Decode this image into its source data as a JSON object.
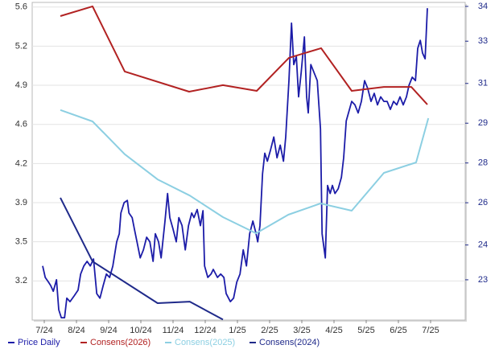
{
  "chart_data": {
    "type": "line",
    "xlim": [
      -0.375,
      13.075
    ],
    "xticks": [
      {
        "value": 0,
        "label": "7/24"
      },
      {
        "value": 1,
        "label": "8/24"
      },
      {
        "value": 2,
        "label": "9/24"
      },
      {
        "value": 3,
        "label": "10/24"
      },
      {
        "value": 4,
        "label": "11/24"
      },
      {
        "value": 5,
        "label": "12/24"
      },
      {
        "value": 6,
        "label": "1/25"
      },
      {
        "value": 7,
        "label": "2/25"
      },
      {
        "value": 8,
        "label": "3/25"
      },
      {
        "value": 9,
        "label": "4/25"
      },
      {
        "value": 10,
        "label": "5/25"
      },
      {
        "value": 11,
        "label": "6/25"
      },
      {
        "value": 12,
        "label": "7/25"
      }
    ],
    "ylim": [
      2.86,
      5.62
    ],
    "yticks": [
      3.2,
      {
        "value": 3.54,
        "label": "3.5"
      },
      {
        "value": 3.88,
        "label": "3.9"
      },
      {
        "value": 4.22,
        "label": "4.2"
      },
      {
        "value": 4.56,
        "label": "4.6"
      },
      4.9,
      {
        "value": 5.24,
        "label": "5.2"
      },
      {
        "value": 5.58,
        "label": "5.6"
      }
    ],
    "y2lim": [
      21.38,
      34.16
    ],
    "y2ticks": [
      23,
      {
        "value": 24.4,
        "label": "24"
      },
      {
        "value": 26.1,
        "label": "26"
      },
      {
        "value": 27.7,
        "label": "28"
      },
      {
        "value": 29.3,
        "label": "29"
      },
      {
        "value": 30.9,
        "label": "31"
      },
      {
        "value": 32.6,
        "label": "33"
      },
      34
    ],
    "grid": true,
    "legend": "bottom",
    "series": [
      {
        "name": "Price Daily",
        "color": "#1c1ca8",
        "x": [
          -0.05,
          0.03,
          0.13,
          0.2,
          0.28,
          0.38,
          0.45,
          0.53,
          0.63,
          0.7,
          0.8,
          0.93,
          1.05,
          1.13,
          1.23,
          1.33,
          1.43,
          1.53,
          1.63,
          1.73,
          1.83,
          1.93,
          2.03,
          2.13,
          2.25,
          2.33,
          2.38,
          2.48,
          2.58,
          2.63,
          2.73,
          2.8,
          2.88,
          2.98,
          3.08,
          3.18,
          3.28,
          3.38,
          3.45,
          3.55,
          3.63,
          3.75,
          3.83,
          3.9,
          4.0,
          4.1,
          4.18,
          4.28,
          4.38,
          4.48,
          4.58,
          4.65,
          4.75,
          4.85,
          4.93,
          4.98,
          5.08,
          5.18,
          5.25,
          5.38,
          5.48,
          5.58,
          5.65,
          5.78,
          5.88,
          5.98,
          6.08,
          6.18,
          6.28,
          6.38,
          6.48,
          6.58,
          6.63,
          6.7,
          6.78,
          6.85,
          6.93,
          7.03,
          7.13,
          7.23,
          7.33,
          7.43,
          7.5,
          7.6,
          7.68,
          7.75,
          7.83,
          7.9,
          7.98,
          8.08,
          8.15,
          8.2,
          8.28,
          8.38,
          8.48,
          8.58,
          8.63,
          8.73,
          8.8,
          8.88,
          8.95,
          9.03,
          9.13,
          9.23,
          9.3,
          9.38,
          9.45,
          9.55,
          9.65,
          9.75,
          9.85,
          9.95,
          10.05,
          10.15,
          10.25,
          10.35,
          10.45,
          10.55,
          10.65,
          10.75,
          10.85,
          10.95,
          11.05,
          11.15,
          11.25,
          11.33,
          11.43,
          11.53,
          11.6,
          11.68,
          11.75,
          11.83,
          11.9
        ],
        "values": [
          3.33,
          3.23,
          3.19,
          3.16,
          3.11,
          3.21,
          2.95,
          2.88,
          2.88,
          3.05,
          3.02,
          3.07,
          3.12,
          3.26,
          3.33,
          3.37,
          3.33,
          3.39,
          3.09,
          3.05,
          3.16,
          3.26,
          3.23,
          3.33,
          3.54,
          3.61,
          3.79,
          3.88,
          3.9,
          3.79,
          3.75,
          3.65,
          3.54,
          3.4,
          3.47,
          3.58,
          3.54,
          3.37,
          3.61,
          3.54,
          3.4,
          3.72,
          3.96,
          3.75,
          3.65,
          3.54,
          3.75,
          3.68,
          3.47,
          3.68,
          3.79,
          3.75,
          3.82,
          3.68,
          3.81,
          3.33,
          3.23,
          3.26,
          3.3,
          3.23,
          3.26,
          3.23,
          3.09,
          3.02,
          3.05,
          3.19,
          3.26,
          3.47,
          3.33,
          3.61,
          3.72,
          3.61,
          3.54,
          3.68,
          4.13,
          4.31,
          4.24,
          4.34,
          4.45,
          4.27,
          4.38,
          4.24,
          4.45,
          4.94,
          5.44,
          5.08,
          5.15,
          4.8,
          5.01,
          5.32,
          4.8,
          4.66,
          5.08,
          5.01,
          4.94,
          4.52,
          3.61,
          3.4,
          4.03,
          3.96,
          4.03,
          3.96,
          4.0,
          4.1,
          4.27,
          4.59,
          4.66,
          4.76,
          4.73,
          4.66,
          4.76,
          4.94,
          4.87,
          4.76,
          4.83,
          4.73,
          4.8,
          4.76,
          4.76,
          4.69,
          4.76,
          4.73,
          4.8,
          4.73,
          4.8,
          4.9,
          4.97,
          4.94,
          5.22,
          5.29,
          5.18,
          5.13,
          5.57
        ]
      },
      {
        "name": "Consens(2026)",
        "color": "#b22222",
        "axis": "y2",
        "x": [
          0.5,
          1.5,
          2.5,
          4.5,
          5.55,
          6.6,
          7.6,
          8.6,
          9.55,
          10.55,
          11.4,
          11.9
        ],
        "values": [
          33.61,
          34.0,
          31.38,
          30.57,
          30.83,
          30.6,
          31.93,
          32.32,
          30.6,
          30.76,
          30.76,
          30.05
        ]
      },
      {
        "name": "Consens(2025)",
        "color": "#8ccfe2",
        "axis": "y2",
        "x": [
          0.5,
          1.5,
          2.5,
          3.52,
          4.52,
          5.55,
          6.58,
          7.58,
          8.58,
          9.55,
          10.55,
          11.55,
          11.93
        ],
        "values": [
          29.83,
          29.37,
          28.05,
          27.04,
          26.39,
          25.52,
          24.87,
          25.62,
          26.07,
          25.78,
          27.3,
          27.72,
          29.5
        ]
      },
      {
        "name": "Consens(2024)",
        "color": "#1f2a8a",
        "axis": "y2",
        "x": [
          0.5,
          1.5,
          3.52,
          4.52,
          5.55
        ],
        "values": [
          26.3,
          23.74,
          22.06,
          22.12,
          21.4
        ]
      }
    ]
  }
}
